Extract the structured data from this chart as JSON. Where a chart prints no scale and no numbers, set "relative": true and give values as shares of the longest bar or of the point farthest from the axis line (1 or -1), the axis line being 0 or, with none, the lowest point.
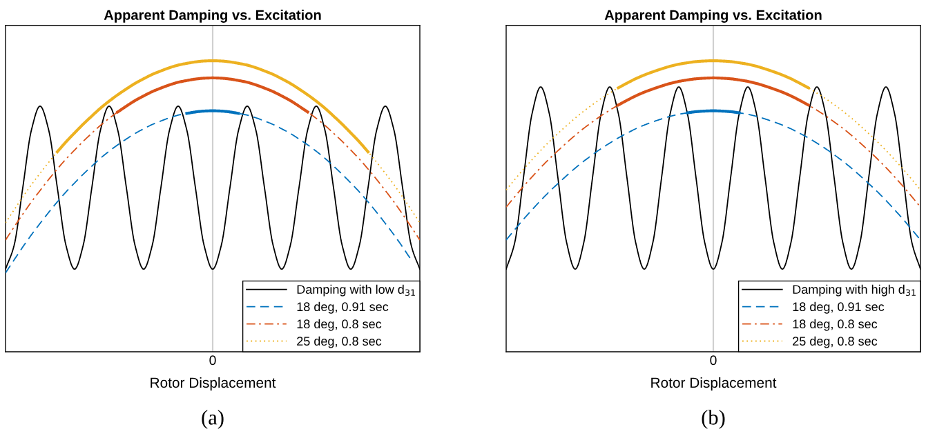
{
  "chart_data": [
    {
      "type": "line",
      "title": "Apparent Damping vs. Excitation",
      "xlabel": "Rotor Displacement",
      "relative": true,
      "tick_labels": "x",
      "legend": "bottom right",
      "annotations": [
        "(a)"
      ],
      "ref_lines": [
        {
          "axis": "x",
          "label": "0",
          "color": "#d0d0d0"
        }
      ],
      "categories": [
        null,
        null,
        null,
        null,
        null,
        null,
        null,
        null,
        null,
        null,
        null,
        null,
        null,
        null,
        null,
        null,
        null,
        null,
        null,
        null,
        null,
        null,
        null,
        null,
        null,
        null,
        null,
        null,
        null,
        null,
        null,
        null,
        null,
        null,
        null,
        null,
        null,
        null,
        null,
        null,
        null,
        null,
        null,
        null,
        null,
        null,
        null,
        null,
        null
      ],
      "series": [
        {
          "name": "Damping with low d$_{31}$",
          "color": "#000000",
          "line_style": "solid",
          "values": [
            0.284,
            0.366,
            0.564,
            0.762,
            0.844,
            0.762,
            0.564,
            0.366,
            0.284,
            0.366,
            0.564,
            0.762,
            0.844,
            0.762,
            0.564,
            0.366,
            0.284,
            0.366,
            0.564,
            0.762,
            0.844,
            0.762,
            0.564,
            0.366,
            0.284,
            0.366,
            0.564,
            0.762,
            0.844,
            0.762,
            0.564,
            0.366,
            0.284,
            0.366,
            0.564,
            0.762,
            0.844,
            0.762,
            0.564,
            0.366,
            0.284,
            0.366,
            0.564,
            0.762,
            0.844,
            0.762,
            0.564,
            0.366,
            0.284
          ]
        },
        {
          "name": "18 deg, 0.91 sec",
          "color": "#0072bd",
          "line_style": "dashed",
          "values": [
            0.271,
            0.316,
            0.36,
            0.402,
            0.441,
            0.479,
            0.515,
            0.549,
            0.58,
            0.61,
            0.638,
            0.665,
            0.689,
            0.711,
            0.731,
            0.75,
            0.766,
            0.781,
            0.793,
            0.804,
            0.813,
            0.819,
            0.824,
            0.827,
            0.828,
            0.827,
            0.824,
            0.819,
            0.813,
            0.804,
            0.793,
            0.781,
            0.766,
            0.75,
            0.731,
            0.711,
            0.689,
            0.665,
            0.638,
            0.61,
            0.58,
            0.549,
            0.515,
            0.479,
            0.441,
            0.402,
            0.36,
            0.316,
            null
          ]
        },
        {
          "name": "18 deg, 0.8 sec",
          "color": "#d95319",
          "line_style": "dashdot",
          "values": [
            0.384,
            0.429,
            0.473,
            0.515,
            0.554,
            0.592,
            0.628,
            0.662,
            0.693,
            0.723,
            0.751,
            0.778,
            0.802,
            0.824,
            0.844,
            0.863,
            0.879,
            0.894,
            0.906,
            0.917,
            0.926,
            0.932,
            0.937,
            0.94,
            0.941,
            0.94,
            0.937,
            0.932,
            0.926,
            0.917,
            0.906,
            0.894,
            0.879,
            0.863,
            0.844,
            0.824,
            0.802,
            0.778,
            0.751,
            0.723,
            0.693,
            0.662,
            0.628,
            0.592,
            0.554,
            0.515,
            0.473,
            0.429,
            0.384
          ]
        },
        {
          "name": "25 deg, 0.8 sec",
          "color": "#edb120",
          "line_style": "dotted",
          "values": [
            0.443,
            0.488,
            0.532,
            0.574,
            0.613,
            0.651,
            0.687,
            0.721,
            0.752,
            0.782,
            0.81,
            0.837,
            0.861,
            0.883,
            0.903,
            0.922,
            0.938,
            0.953,
            0.965,
            0.976,
            0.985,
            0.991,
            0.996,
            0.999,
            1.0,
            0.999,
            0.996,
            0.991,
            0.985,
            0.976,
            0.965,
            0.953,
            0.938,
            0.922,
            0.903,
            0.883,
            0.861,
            0.837,
            0.81,
            0.782,
            0.752,
            0.721,
            0.687,
            0.651,
            0.613,
            0.574,
            0.532,
            0.488,
            0.443
          ]
        },
        {
          "color": "#0072bd",
          "line_style": "solid",
          "values": [
            null,
            null,
            null,
            null,
            null,
            null,
            null,
            null,
            null,
            null,
            null,
            null,
            null,
            null,
            null,
            null,
            null,
            null,
            null,
            null,
            null,
            0.819,
            0.824,
            0.827,
            0.828,
            0.827,
            0.824,
            0.819,
            null,
            null,
            null,
            null,
            null,
            null,
            null,
            null,
            null,
            null,
            null,
            null,
            null,
            null,
            null,
            null,
            null,
            null,
            null,
            null,
            null
          ]
        },
        {
          "color": "#d95319",
          "line_style": "solid",
          "values": [
            null,
            null,
            null,
            null,
            null,
            null,
            null,
            null,
            null,
            null,
            null,
            null,
            null,
            0.824,
            0.844,
            0.863,
            0.879,
            0.894,
            0.906,
            0.917,
            0.926,
            0.932,
            0.937,
            0.94,
            0.941,
            0.94,
            0.937,
            0.932,
            0.926,
            0.917,
            0.906,
            0.894,
            0.879,
            0.863,
            0.844,
            0.824,
            null,
            null,
            null,
            null,
            null,
            null,
            null,
            null,
            null,
            null,
            null,
            null,
            null
          ]
        },
        {
          "color": "#edb120",
          "line_style": "solid",
          "values": [
            null,
            null,
            null,
            null,
            null,
            null,
            0.687,
            0.721,
            0.752,
            0.782,
            0.81,
            0.837,
            0.861,
            0.883,
            0.903,
            0.922,
            0.938,
            0.953,
            0.965,
            0.976,
            0.985,
            0.991,
            0.996,
            0.999,
            1.0,
            0.999,
            0.996,
            0.991,
            0.985,
            0.976,
            0.965,
            0.953,
            0.938,
            0.922,
            0.903,
            0.883,
            0.861,
            0.837,
            0.81,
            0.782,
            0.752,
            0.721,
            0.687,
            null,
            null,
            null,
            null,
            null,
            null
          ]
        }
      ]
    },
    {
      "type": "line",
      "title": "Apparent Damping vs. Excitation",
      "xlabel": "Rotor Displacement",
      "relative": true,
      "tick_labels": "x",
      "legend": "bottom right",
      "annotations": [
        "(b)"
      ],
      "ref_lines": [
        {
          "axis": "x",
          "label": "0",
          "color": "#d0d0d0"
        }
      ],
      "categories": [
        null,
        null,
        null,
        null,
        null,
        null,
        null,
        null,
        null,
        null,
        null,
        null,
        null,
        null,
        null,
        null,
        null,
        null,
        null,
        null,
        null,
        null,
        null,
        null,
        null,
        null,
        null,
        null,
        null,
        null,
        null,
        null,
        null,
        null,
        null,
        null,
        null,
        null,
        null,
        null,
        null,
        null,
        null,
        null,
        null,
        null,
        null,
        null,
        null
      ],
      "series": [
        {
          "name": "Damping with high d$_{31}$",
          "color": "#000000",
          "line_style": "solid",
          "values": [
            0.284,
            0.376,
            0.597,
            0.818,
            0.91,
            0.818,
            0.597,
            0.376,
            0.284,
            0.376,
            0.597,
            0.818,
            0.91,
            0.818,
            0.597,
            0.376,
            0.284,
            0.376,
            0.597,
            0.818,
            0.91,
            0.818,
            0.597,
            0.376,
            0.284,
            0.376,
            0.597,
            0.818,
            0.91,
            0.818,
            0.597,
            0.376,
            0.284,
            0.376,
            0.597,
            0.818,
            0.91,
            0.818,
            0.597,
            0.376,
            0.284,
            0.376,
            0.597,
            0.818,
            0.91,
            0.818,
            0.597,
            0.376,
            0.284
          ]
        },
        {
          "name": "18 deg, 0.91 sec",
          "color": "#0072bd",
          "line_style": "dashed",
          "values": [
            0.384,
            0.42,
            0.455,
            0.488,
            0.52,
            0.55,
            0.578,
            0.605,
            0.631,
            0.655,
            0.677,
            0.698,
            0.717,
            0.735,
            0.751,
            0.766,
            0.779,
            0.79,
            0.8,
            0.809,
            0.816,
            0.821,
            0.825,
            0.827,
            0.828,
            0.827,
            0.825,
            0.821,
            0.816,
            0.809,
            0.8,
            0.79,
            0.779,
            0.766,
            0.751,
            0.735,
            0.717,
            0.698,
            0.677,
            0.655,
            0.631,
            0.605,
            0.578,
            0.55,
            0.52,
            0.488,
            0.455,
            0.42,
            0.384
          ]
        },
        {
          "name": "18 deg, 0.8 sec",
          "color": "#d95319",
          "line_style": "dashdot",
          "values": [
            0.497,
            0.533,
            0.568,
            0.601,
            0.633,
            0.663,
            0.691,
            0.718,
            0.744,
            0.768,
            0.79,
            0.811,
            0.83,
            0.848,
            0.864,
            0.879,
            0.892,
            0.903,
            0.913,
            0.922,
            0.929,
            0.934,
            0.938,
            0.94,
            0.941,
            0.94,
            0.938,
            0.934,
            0.929,
            0.922,
            0.913,
            0.903,
            0.892,
            0.879,
            0.864,
            0.848,
            0.83,
            0.811,
            0.79,
            0.768,
            0.744,
            0.718,
            0.691,
            0.663,
            0.633,
            0.601,
            0.568,
            0.533,
            0.497
          ]
        },
        {
          "name": "25 deg, 0.8 sec",
          "color": "#edb120",
          "line_style": "dotted",
          "values": [
            0.556,
            0.592,
            0.627,
            0.66,
            0.692,
            0.722,
            0.75,
            0.777,
            0.803,
            0.827,
            0.849,
            0.87,
            0.889,
            0.907,
            0.923,
            0.938,
            0.951,
            0.962,
            0.972,
            0.981,
            0.988,
            0.993,
            0.997,
            0.999,
            1.0,
            0.999,
            0.997,
            0.993,
            0.988,
            0.981,
            0.972,
            0.962,
            0.951,
            0.938,
            0.923,
            0.907,
            0.889,
            0.87,
            0.849,
            0.827,
            0.803,
            0.777,
            0.75,
            0.722,
            0.692,
            0.66,
            0.627,
            0.592,
            0.556
          ]
        },
        {
          "color": "#0072bd",
          "line_style": "solid",
          "values": [
            null,
            null,
            null,
            null,
            null,
            null,
            null,
            null,
            null,
            null,
            null,
            null,
            null,
            null,
            null,
            null,
            null,
            null,
            null,
            null,
            null,
            0.821,
            0.825,
            0.827,
            0.828,
            0.827,
            0.825,
            0.821,
            null,
            null,
            null,
            null,
            null,
            null,
            null,
            null,
            null,
            null,
            null,
            null,
            null,
            null,
            null,
            null,
            null,
            null,
            null,
            null,
            null
          ]
        },
        {
          "color": "#d95319",
          "line_style": "solid",
          "values": [
            null,
            null,
            null,
            null,
            null,
            null,
            null,
            null,
            null,
            null,
            null,
            null,
            null,
            0.848,
            0.864,
            0.879,
            0.892,
            0.903,
            0.913,
            0.922,
            0.929,
            0.934,
            0.938,
            0.94,
            0.941,
            0.94,
            0.938,
            0.934,
            0.929,
            0.922,
            0.913,
            0.903,
            0.892,
            0.879,
            0.864,
            0.848,
            null,
            null,
            null,
            null,
            null,
            null,
            null,
            null,
            null,
            null,
            null,
            null,
            null
          ]
        },
        {
          "color": "#edb120",
          "line_style": "solid",
          "values": [
            null,
            null,
            null,
            null,
            null,
            null,
            null,
            null,
            null,
            null,
            null,
            null,
            null,
            0.907,
            0.923,
            0.938,
            0.951,
            0.962,
            0.972,
            0.981,
            0.988,
            0.993,
            0.997,
            0.999,
            1.0,
            0.999,
            0.997,
            0.993,
            0.988,
            0.981,
            0.972,
            0.962,
            0.951,
            0.938,
            0.923,
            0.907,
            null,
            null,
            null,
            null,
            null,
            null,
            null,
            null,
            null,
            null,
            null,
            null,
            null
          ]
        }
      ]
    }
  ]
}
